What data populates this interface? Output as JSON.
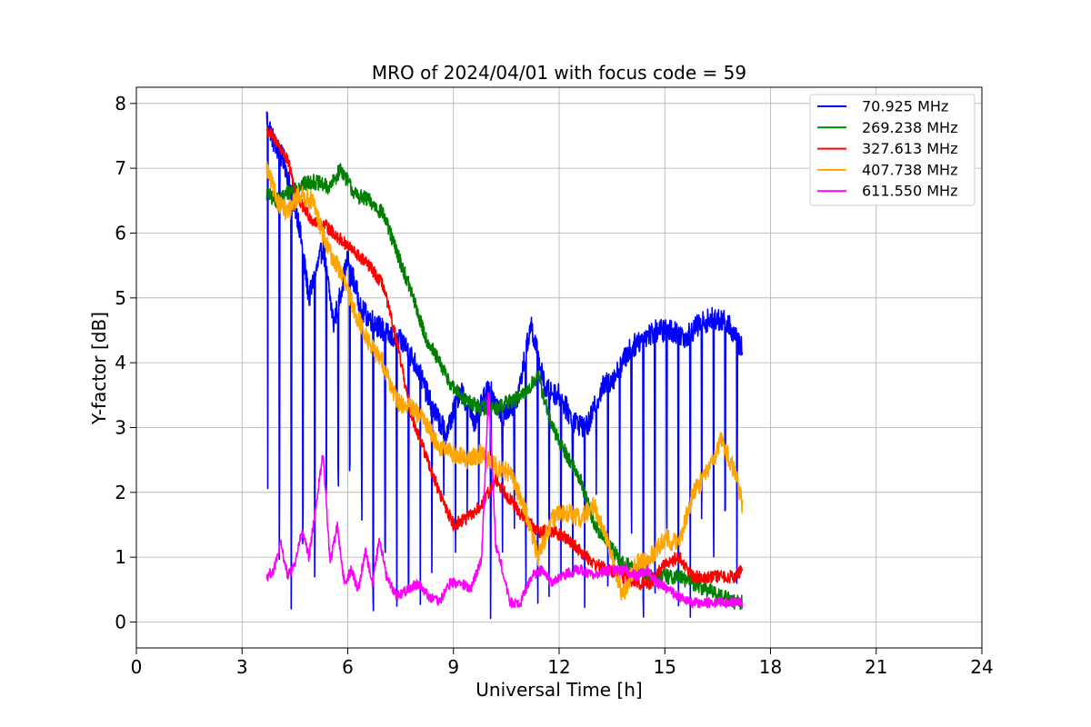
{
  "chart_data": {
    "type": "line",
    "title": "MRO of 2024/04/01 with focus code = 59",
    "xlabel": "Universal Time [h]",
    "ylabel": "Y-factor [dB]",
    "xlim": [
      0,
      24
    ],
    "ylim": [
      -0.4,
      8.25
    ],
    "xticks": [
      0,
      3,
      6,
      9,
      12,
      15,
      18,
      21,
      24
    ],
    "xtick_labels": [
      "0",
      "3",
      "6",
      "9",
      "12",
      "15",
      "18",
      "21",
      "24"
    ],
    "yticks": [
      0,
      1,
      2,
      3,
      4,
      5,
      6,
      7,
      8
    ],
    "ytick_labels": [
      "0",
      "1",
      "2",
      "3",
      "4",
      "5",
      "6",
      "7",
      "8"
    ],
    "grid": true,
    "legend_position": "top-right",
    "series": [
      {
        "name": " 70.925 MHz",
        "color": "#0000ff",
        "noise": 0.18,
        "dips": true,
        "x": [
          3.7,
          3.9,
          4.2,
          4.6,
          4.9,
          5.3,
          5.6,
          6.0,
          6.4,
          6.8,
          7.2,
          7.6,
          8.0,
          8.4,
          8.8,
          9.2,
          9.6,
          10.0,
          10.4,
          10.8,
          11.2,
          11.6,
          12.0,
          12.4,
          12.8,
          13.2,
          13.6,
          14.0,
          14.4,
          14.8,
          15.2,
          15.6,
          16.0,
          16.4,
          16.8,
          17.2
        ],
        "y": [
          7.8,
          7.4,
          7.1,
          6.2,
          5.0,
          5.8,
          4.6,
          5.6,
          4.8,
          4.6,
          4.4,
          4.3,
          3.9,
          3.3,
          2.9,
          3.6,
          3.1,
          3.6,
          3.2,
          3.4,
          4.6,
          3.6,
          3.5,
          3.1,
          3.0,
          3.6,
          3.8,
          4.2,
          4.4,
          4.5,
          4.5,
          4.4,
          4.6,
          4.7,
          4.6,
          4.2
        ]
      },
      {
        "name": "269.238 MHz",
        "color": "#008000",
        "noise": 0.12,
        "dips": false,
        "x": [
          3.7,
          4.0,
          4.5,
          5.0,
          5.5,
          5.8,
          6.2,
          6.6,
          7.0,
          7.4,
          7.8,
          8.2,
          8.6,
          9.0,
          9.4,
          9.8,
          10.2,
          10.6,
          11.0,
          11.4,
          11.8,
          12.2,
          12.6,
          13.0,
          13.4,
          13.8,
          14.2,
          14.6,
          15.0,
          15.4,
          15.8,
          16.2,
          16.6,
          17.0,
          17.2
        ],
        "y": [
          6.6,
          6.5,
          6.7,
          6.8,
          6.7,
          7.0,
          6.6,
          6.5,
          6.3,
          5.7,
          5.1,
          4.4,
          4.0,
          3.6,
          3.4,
          3.3,
          3.3,
          3.4,
          3.5,
          3.8,
          3.0,
          2.6,
          2.2,
          1.5,
          1.2,
          0.9,
          0.8,
          0.7,
          0.7,
          0.7,
          0.6,
          0.5,
          0.4,
          0.3,
          0.3
        ]
      },
      {
        "name": "327.613 MHz",
        "color": "#ff0000",
        "noise": 0.1,
        "dips": false,
        "x": [
          3.7,
          4.0,
          4.3,
          4.6,
          5.0,
          5.4,
          5.8,
          6.2,
          6.6,
          7.0,
          7.4,
          7.8,
          8.2,
          8.6,
          9.0,
          9.4,
          9.8,
          10.2,
          10.6,
          11.0,
          11.4,
          11.8,
          12.2,
          12.6,
          13.0,
          13.4,
          13.8,
          14.2,
          14.6,
          15.0,
          15.4,
          15.8,
          16.2,
          16.6,
          17.0,
          17.2
        ],
        "y": [
          7.6,
          7.4,
          7.1,
          6.5,
          6.2,
          6.1,
          5.9,
          5.7,
          5.5,
          5.2,
          4.3,
          3.2,
          2.6,
          2.0,
          1.5,
          1.6,
          1.8,
          2.2,
          1.9,
          1.6,
          1.4,
          1.4,
          1.3,
          1.1,
          0.9,
          0.8,
          0.7,
          0.6,
          0.6,
          0.9,
          1.0,
          0.7,
          0.7,
          0.7,
          0.7,
          0.8
        ]
      },
      {
        "name": "407.738 MHz",
        "color": "#ffa500",
        "noise": 0.15,
        "dips": false,
        "x": [
          3.7,
          4.0,
          4.3,
          4.6,
          5.0,
          5.4,
          5.8,
          6.2,
          6.6,
          7.0,
          7.4,
          7.8,
          8.2,
          8.6,
          9.0,
          9.4,
          9.8,
          10.2,
          10.6,
          11.0,
          11.4,
          11.8,
          12.2,
          12.6,
          13.0,
          13.4,
          13.8,
          14.2,
          14.6,
          15.0,
          15.4,
          15.8,
          16.2,
          16.6,
          17.0,
          17.2
        ],
        "y": [
          7.0,
          6.5,
          6.3,
          6.6,
          6.5,
          5.8,
          5.4,
          4.8,
          4.3,
          4.0,
          3.4,
          3.3,
          3.1,
          2.7,
          2.6,
          2.5,
          2.6,
          2.4,
          2.3,
          1.8,
          1.0,
          1.6,
          1.7,
          1.6,
          1.8,
          1.2,
          0.4,
          0.9,
          1.0,
          1.3,
          1.2,
          2.0,
          2.3,
          2.8,
          2.3,
          1.8
        ]
      },
      {
        "name": "611.550 MHz",
        "color": "#ff00ff",
        "noise": 0.08,
        "dips": false,
        "x": [
          3.7,
          3.9,
          4.1,
          4.3,
          4.5,
          4.7,
          4.9,
          5.1,
          5.3,
          5.5,
          5.7,
          5.9,
          6.1,
          6.3,
          6.5,
          6.7,
          6.9,
          7.1,
          7.4,
          7.7,
          8.0,
          8.3,
          8.6,
          8.9,
          9.2,
          9.5,
          9.8,
          10.0,
          10.2,
          10.4,
          10.6,
          10.9,
          11.2,
          11.5,
          11.8,
          12.1,
          12.4,
          12.7,
          13.0,
          13.3,
          13.6,
          13.9,
          14.2,
          14.5,
          14.8,
          15.1,
          15.4,
          15.7,
          16.0,
          16.3,
          16.6,
          16.9,
          17.2
        ],
        "y": [
          0.7,
          0.8,
          1.2,
          0.7,
          0.9,
          1.4,
          1.0,
          1.8,
          2.6,
          0.9,
          1.5,
          0.6,
          0.8,
          0.5,
          1.1,
          0.6,
          1.3,
          0.7,
          0.4,
          0.5,
          0.6,
          0.4,
          0.3,
          0.6,
          0.6,
          0.5,
          1.0,
          3.6,
          1.2,
          0.8,
          0.3,
          0.3,
          0.7,
          0.8,
          0.6,
          0.7,
          0.8,
          0.8,
          0.7,
          0.8,
          0.8,
          0.8,
          0.7,
          0.8,
          0.6,
          0.5,
          0.4,
          0.3,
          0.3,
          0.3,
          0.3,
          0.3,
          0.3
        ]
      }
    ]
  }
}
